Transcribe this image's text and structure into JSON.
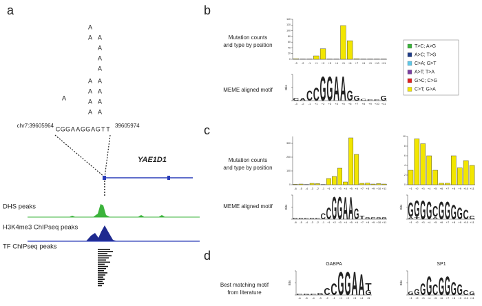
{
  "letter_colors": {
    "A": "#2e9e2e",
    "C": "#2447b8",
    "G": "#f0a020",
    "T": "#d62020"
  },
  "panel_a": {
    "label": "a",
    "mutation_columns": [
      [
        "A",
        "A",
        "A",
        "A",
        "A",
        "A"
      ],
      [
        "A",
        "A",
        "A",
        "A",
        "A",
        "A",
        "A",
        "A"
      ],
      [
        "A"
      ]
    ],
    "mutation_color": "#3aa83a",
    "coord_start": "chr7:39605964",
    "coord_end": "39605974",
    "sequence": [
      "C",
      "G",
      "G",
      "A",
      "A",
      "G",
      "G",
      "A",
      "G",
      "T",
      "T"
    ],
    "gene": "YAE1D1",
    "tracks": [
      "DHS peaks",
      "H3K4me3 ChIPseq peaks",
      "TF ChIPseq peaks"
    ]
  },
  "panel_b": {
    "label": "b",
    "counts_label": [
      "Mutation counts",
      "and type by position"
    ],
    "motif_label": "MEME aligned motif",
    "legend": [
      {
        "name": "T>C; A>G",
        "color": "#3bb33b"
      },
      {
        "name": "A>C; T>G",
        "color": "#1f3c88"
      },
      {
        "name": "C>A; G>T",
        "color": "#5ec8e8"
      },
      {
        "name": "A>T; T>A",
        "color": "#7a3fa0"
      },
      {
        "name": "G>C; C>G",
        "color": "#e02020"
      },
      {
        "name": "C>T; G>A",
        "color": "#f2e600"
      }
    ],
    "counts": {
      "categories": [
        "-3",
        "-2",
        "-1",
        "+1",
        "+2",
        "+3",
        "+4",
        "+5",
        "+6",
        "+7",
        "+8",
        "+9",
        "+10",
        "+11"
      ],
      "values": [
        2,
        1,
        1,
        12,
        37,
        1,
        1,
        118,
        65,
        2,
        1,
        1,
        1,
        1
      ],
      "color": "#f2e600",
      "ylim": [
        0,
        140
      ],
      "yticks": [
        0,
        20,
        40,
        60,
        80,
        100,
        120,
        140
      ]
    },
    "motif": {
      "y_label": "Bits",
      "ylim": [
        0,
        2
      ],
      "yticks": [
        0,
        1,
        2
      ],
      "categories": [
        "-3",
        "-2",
        "-1",
        "+1",
        "+2",
        "+3",
        "+4",
        "+5",
        "+6",
        "+7",
        "+8",
        "+9",
        "+10",
        "+11"
      ],
      "columns": [
        [
          {
            "letter": "C",
            "bits": 0.2
          }
        ],
        [
          {
            "letter": "A",
            "bits": 0.2
          }
        ],
        [
          {
            "letter": "C",
            "bits": 0.8
          }
        ],
        [
          {
            "letter": "C",
            "bits": 1.0
          }
        ],
        [
          {
            "letter": "G",
            "bits": 1.9
          }
        ],
        [
          {
            "letter": "G",
            "bits": 1.9
          }
        ],
        [
          {
            "letter": "A",
            "bits": 1.9
          }
        ],
        [
          {
            "letter": "A",
            "bits": 1.9
          }
        ],
        [
          {
            "letter": "G",
            "bits": 0.8
          }
        ],
        [
          {
            "letter": "G",
            "bits": 0.4
          }
        ],
        [
          {
            "letter": "C",
            "bits": 0.15
          }
        ],
        [
          {
            "letter": "C",
            "bits": 0.1
          }
        ],
        [
          {
            "letter": "C",
            "bits": 0.1
          }
        ],
        [
          {
            "letter": "G",
            "bits": 0.4
          }
        ]
      ]
    }
  },
  "panel_c": {
    "label": "c",
    "counts_label": [
      "Mutation counts",
      "and type by position"
    ],
    "motif_label": "MEME aligned motif",
    "counts_left": {
      "categories": [
        "-6",
        "-5",
        "-4",
        "-3",
        "-2",
        "-1",
        "+1",
        "+2",
        "+3",
        "+4",
        "+5",
        "+6",
        "+7",
        "+8",
        "+9",
        "+10",
        "+11"
      ],
      "values": [
        3,
        5,
        2,
        10,
        8,
        2,
        45,
        60,
        120,
        20,
        340,
        220,
        10,
        12,
        5,
        8,
        5
      ],
      "color": "#f2e600",
      "ylim": [
        0,
        350
      ],
      "yticks": [
        0,
        100,
        200,
        300
      ]
    },
    "counts_right": {
      "categories": [
        "+1",
        "+2",
        "+3",
        "+4",
        "+5",
        "+6",
        "+7",
        "+8",
        "+9",
        "+10",
        "+11"
      ],
      "values": [
        3,
        9.5,
        8.5,
        6,
        3,
        0.3,
        0.3,
        6,
        3.5,
        5,
        4
      ],
      "color": "#f2e600",
      "ylim": [
        0,
        10
      ],
      "yticks": [
        0,
        2,
        4,
        6,
        8,
        10
      ]
    },
    "motif_left": {
      "y_label": "Bits",
      "ylim": [
        0,
        2
      ],
      "yticks": [
        0,
        1,
        2
      ],
      "categories": [
        "-6",
        "-5",
        "-4",
        "-3",
        "-2",
        "-1",
        "+1",
        "+2",
        "+3",
        "+4",
        "+5",
        "+6",
        "+7",
        "+8",
        "+9",
        "+10",
        "+11"
      ],
      "columns": [
        [
          {
            "letter": "G",
            "bits": 0.1
          }
        ],
        [
          {
            "letter": "G",
            "bits": 0.1
          }
        ],
        [
          {
            "letter": "C",
            "bits": 0.1
          }
        ],
        [
          {
            "letter": "G",
            "bits": 0.1
          }
        ],
        [
          {
            "letter": "C",
            "bits": 0.1
          }
        ],
        [
          {
            "letter": "C",
            "bits": 0.5
          }
        ],
        [
          {
            "letter": "C",
            "bits": 1.0
          }
        ],
        [
          {
            "letter": "G",
            "bits": 1.9
          }
        ],
        [
          {
            "letter": "G",
            "bits": 1.9
          }
        ],
        [
          {
            "letter": "A",
            "bits": 1.9
          }
        ],
        [
          {
            "letter": "A",
            "bits": 1.9
          }
        ],
        [
          {
            "letter": "G",
            "bits": 0.9
          }
        ],
        [
          {
            "letter": "T",
            "bits": 0.3
          }
        ],
        [
          {
            "letter": "G",
            "bits": 0.2
          }
        ],
        [
          {
            "letter": "C",
            "bits": 0.2
          }
        ],
        [
          {
            "letter": "G",
            "bits": 0.2
          }
        ],
        [
          {
            "letter": "G",
            "bits": 0.2
          }
        ]
      ]
    },
    "motif_right": {
      "y_label": "Bits",
      "ylim": [
        0,
        2
      ],
      "yticks": [
        0,
        1,
        2
      ],
      "categories": [
        "+1",
        "+2",
        "+3",
        "+4",
        "+5",
        "+6",
        "+7",
        "+8",
        "+9",
        "+10",
        "+11"
      ],
      "columns": [
        [
          {
            "letter": "A",
            "bits": 0.2
          },
          {
            "letter": "G",
            "bits": 1.2
          }
        ],
        [
          {
            "letter": "T",
            "bits": 0.2
          },
          {
            "letter": "G",
            "bits": 1.4
          }
        ],
        [
          {
            "letter": "G",
            "bits": 1.6
          }
        ],
        [
          {
            "letter": "G",
            "bits": 1.5
          }
        ],
        [
          {
            "letter": "A",
            "bits": 0.2
          },
          {
            "letter": "C",
            "bits": 0.9
          }
        ],
        [
          {
            "letter": "G",
            "bits": 1.5
          }
        ],
        [
          {
            "letter": "G",
            "bits": 1.5
          }
        ],
        [
          {
            "letter": "G",
            "bits": 1.2
          }
        ],
        [
          {
            "letter": "G",
            "bits": 1.0
          }
        ],
        [
          {
            "letter": "C",
            "bits": 0.8
          }
        ],
        [
          {
            "letter": "C",
            "bits": 0.3
          }
        ]
      ]
    }
  },
  "panel_d": {
    "label": "d",
    "match_label": [
      "Best matching motif",
      "from literature"
    ],
    "motif_left": {
      "title": "GABPA",
      "y_label": "Bits",
      "ylim": [
        0,
        2
      ],
      "yticks": [
        0,
        1,
        2
      ],
      "categories": [
        "-6",
        "-5",
        "-4",
        "-3",
        "-2",
        "-1",
        "+1",
        "+2",
        "+3",
        "+4",
        "+5"
      ],
      "columns": [
        [
          {
            "letter": "C",
            "bits": 0.1
          }
        ],
        [
          {
            "letter": "G",
            "bits": 0.1
          }
        ],
        [
          {
            "letter": "C",
            "bits": 0.1
          }
        ],
        [
          {
            "letter": "G",
            "bits": 0.2
          }
        ],
        [
          {
            "letter": "C",
            "bits": 0.6
          }
        ],
        [
          {
            "letter": "C",
            "bits": 1.0
          }
        ],
        [
          {
            "letter": "G",
            "bits": 2.0
          }
        ],
        [
          {
            "letter": "G",
            "bits": 2.0
          }
        ],
        [
          {
            "letter": "A",
            "bits": 2.0
          }
        ],
        [
          {
            "letter": "A",
            "bits": 1.8
          }
        ],
        [
          {
            "letter": "G",
            "bits": 0.4
          },
          {
            "letter": "T",
            "bits": 0.6
          }
        ]
      ]
    },
    "motif_right": {
      "title": "SP1",
      "y_label": "Bits",
      "ylim": [
        0,
        2
      ],
      "yticks": [
        0,
        1,
        2
      ],
      "categories": [
        "+1",
        "+2",
        "+3",
        "+4",
        "+5",
        "+6",
        "+7",
        "+8",
        "+9",
        "+10",
        "+11"
      ],
      "columns": [
        [
          {
            "letter": "G",
            "bits": 0.3
          }
        ],
        [
          {
            "letter": "G",
            "bits": 0.5
          }
        ],
        [
          {
            "letter": "G",
            "bits": 1.0
          }
        ],
        [
          {
            "letter": "G",
            "bits": 1.6
          }
        ],
        [
          {
            "letter": "C",
            "bits": 0.9
          }
        ],
        [
          {
            "letter": "G",
            "bits": 1.5
          }
        ],
        [
          {
            "letter": "G",
            "bits": 1.6
          }
        ],
        [
          {
            "letter": "G",
            "bits": 1.1
          }
        ],
        [
          {
            "letter": "G",
            "bits": 0.9
          }
        ],
        [
          {
            "letter": "C",
            "bits": 0.4
          }
        ],
        [
          {
            "letter": "G",
            "bits": 0.3
          }
        ]
      ]
    }
  }
}
